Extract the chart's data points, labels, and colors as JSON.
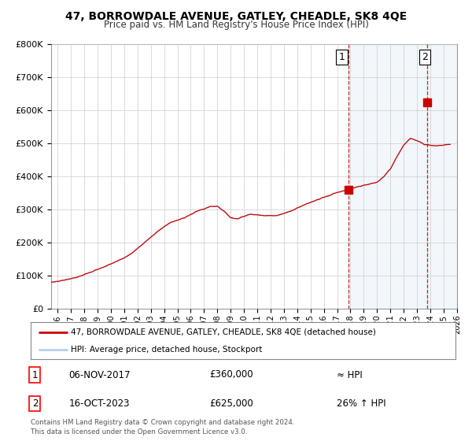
{
  "title": "47, BORROWDALE AVENUE, GATLEY, CHEADLE, SK8 4QE",
  "subtitle": "Price paid vs. HM Land Registry's House Price Index (HPI)",
  "ylabel_ticks": [
    "£0",
    "£100K",
    "£200K",
    "£300K",
    "£400K",
    "£500K",
    "£600K",
    "£700K",
    "£800K"
  ],
  "ytick_values": [
    0,
    100000,
    200000,
    300000,
    400000,
    500000,
    600000,
    700000,
    800000
  ],
  "ylim": [
    0,
    800000
  ],
  "xlim_start": 1995.5,
  "xlim_end": 2026.0,
  "hpi_color": "#b8d0e8",
  "price_color": "#cc0000",
  "dashed_color": "#cc0000",
  "marker1_year": 2017.85,
  "marker1_price": 360000,
  "marker2_year": 2023.79,
  "marker2_price": 625000,
  "legend_line1": "47, BORROWDALE AVENUE, GATLEY, CHEADLE, SK8 4QE (detached house)",
  "legend_line2": "HPI: Average price, detached house, Stockport",
  "note1_num": "1",
  "note1_date": "06-NOV-2017",
  "note1_price": "£360,000",
  "note1_hpi": "≈ HPI",
  "note2_num": "2",
  "note2_date": "16-OCT-2023",
  "note2_price": "£625,000",
  "note2_hpi": "26% ↑ HPI",
  "footer": "Contains HM Land Registry data © Crown copyright and database right 2024.\nThis data is licensed under the Open Government Licence v3.0.",
  "background_color": "#ffffff",
  "grid_color": "#cccccc",
  "shade_color": "#ddeeff"
}
